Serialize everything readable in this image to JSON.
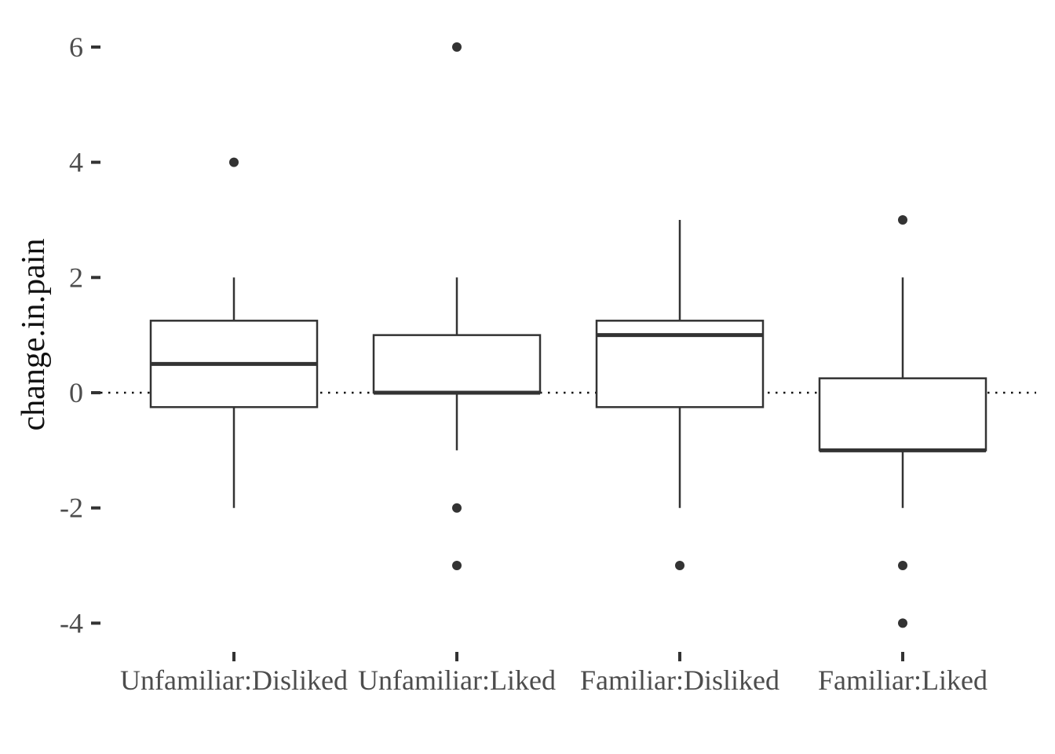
{
  "chart_data": {
    "type": "box",
    "title": "",
    "xlabel": "",
    "ylabel": "change.in.pain",
    "ylim": [
      -4.5,
      6.2
    ],
    "yticks": [
      -4,
      -2,
      0,
      2,
      4,
      6
    ],
    "ytick_labels": [
      "-4",
      "-2",
      "0",
      "2",
      "4",
      "6"
    ],
    "reference_line": {
      "y": 0,
      "style": "dotted"
    },
    "grid": false,
    "legend": "none",
    "colors": {
      "box_stroke": "#333333",
      "median": "#333333",
      "outlier": "#333333",
      "tick_label": "#4d4d4d",
      "background": "#ffffff"
    },
    "categories": [
      "Unfamiliar:Disliked",
      "Unfamiliar:Liked",
      "Familiar:Disliked",
      "Familiar:Liked"
    ],
    "boxes": [
      {
        "category": "Unfamiliar:Disliked",
        "whisker_low": -2,
        "q1": -0.25,
        "median": 0.5,
        "q3": 1.25,
        "whisker_high": 2,
        "outliers": [
          4
        ]
      },
      {
        "category": "Unfamiliar:Liked",
        "whisker_low": -1,
        "q1": 0,
        "median": 0,
        "q3": 1,
        "whisker_high": 2,
        "outliers": [
          6,
          -2,
          -3
        ]
      },
      {
        "category": "Familiar:Disliked",
        "whisker_low": -2,
        "q1": -0.25,
        "median": 1,
        "q3": 1.25,
        "whisker_high": 3,
        "outliers": [
          -3
        ]
      },
      {
        "category": "Familiar:Liked",
        "whisker_low": -2,
        "q1": -1,
        "median": -1,
        "q3": 0.25,
        "whisker_high": 2,
        "outliers": [
          3,
          -3,
          -4
        ]
      }
    ]
  }
}
